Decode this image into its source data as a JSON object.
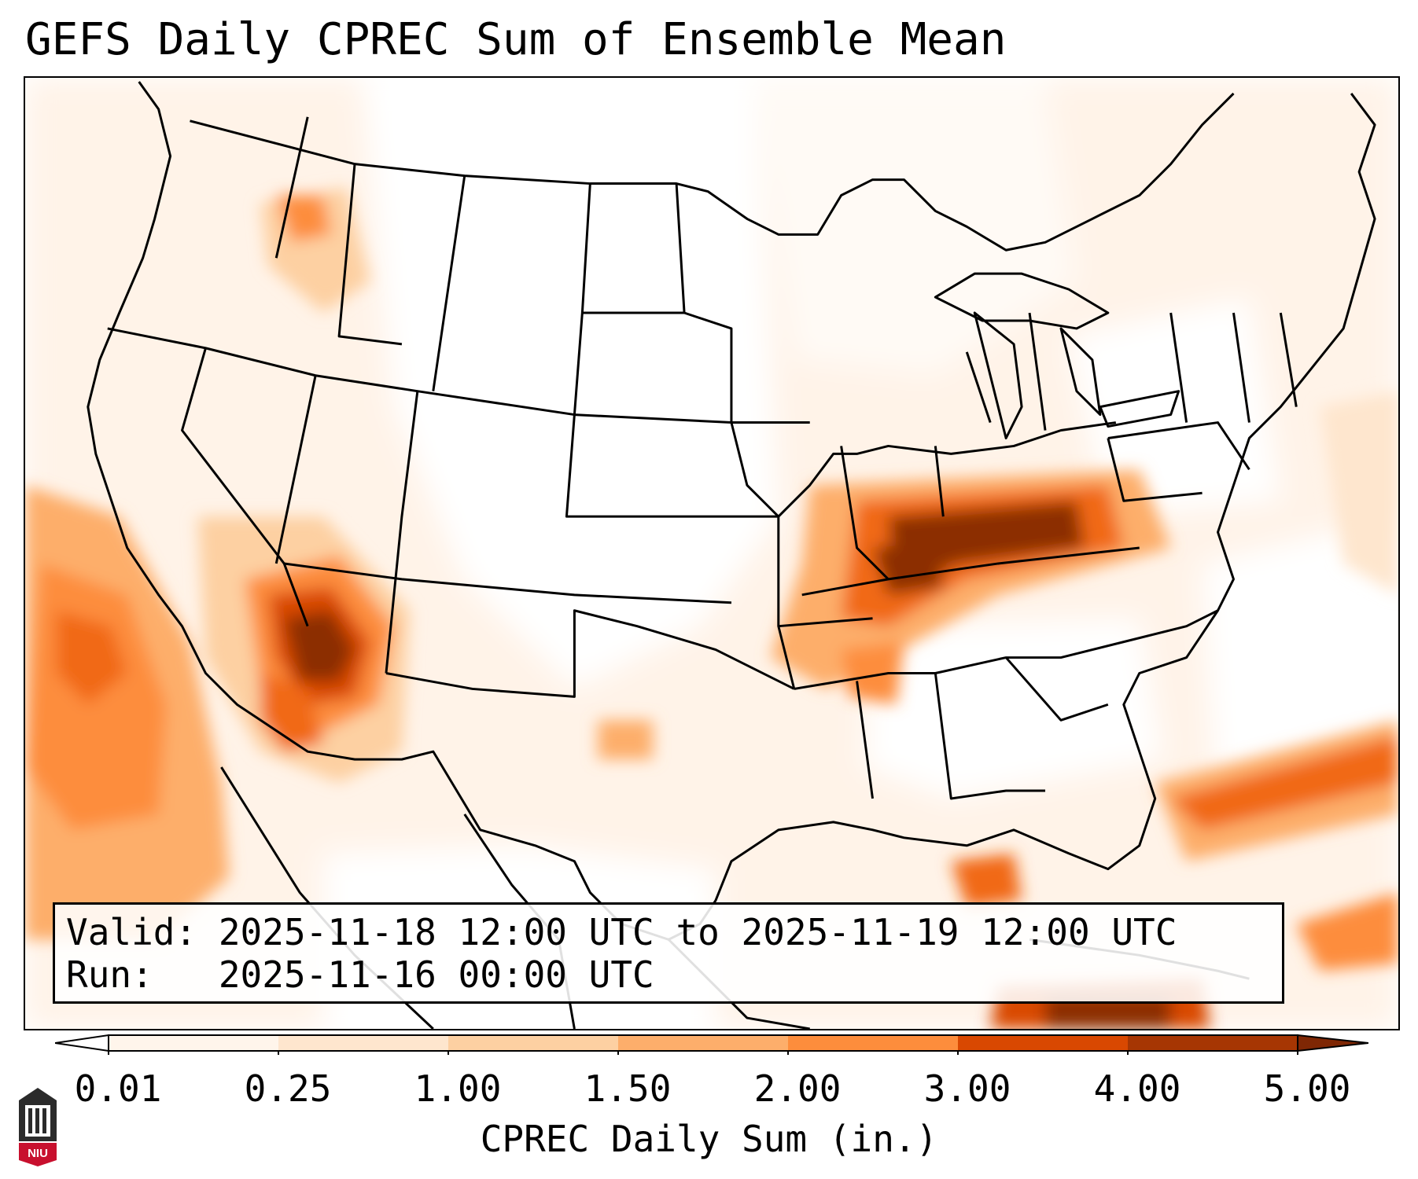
{
  "title": "GEFS Daily CPREC Sum of Ensemble Mean",
  "info": {
    "valid_line": "Valid: 2025-11-18 12:00 UTC to 2025-11-19 12:00 UTC",
    "run_line": "Run:   2025-11-16 00:00 UTC"
  },
  "colorbar": {
    "label": "CPREC Daily Sum (in.)",
    "ticks": [
      "0.01",
      "0.25",
      "1.00",
      "1.50",
      "2.00",
      "3.00",
      "4.00",
      "5.00"
    ],
    "colors": [
      "#fff5eb",
      "#fee6ce",
      "#fdd0a2",
      "#fdae6b",
      "#fd8d3c",
      "#f16913",
      "#d94801",
      "#8c2d04"
    ],
    "under_color": "#ffffff",
    "over_color": "#7f2704"
  },
  "logo": {
    "text": "NIU",
    "color": "#c8102e"
  }
}
